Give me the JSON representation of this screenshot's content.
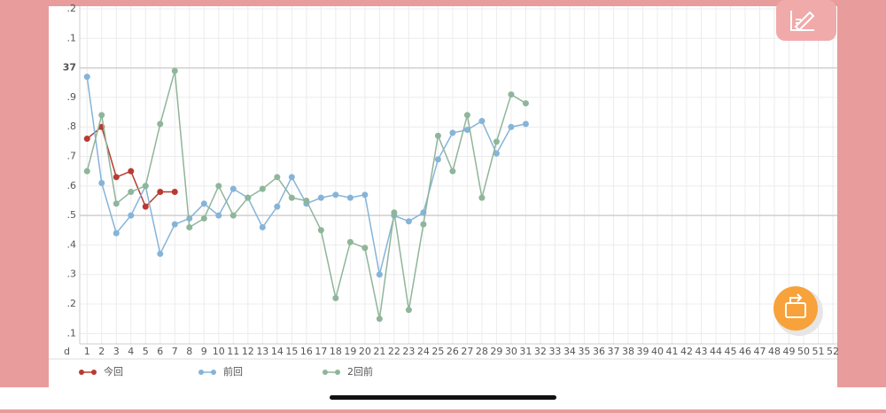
{
  "chart_data": {
    "type": "line",
    "x_label": "d",
    "x": [
      1,
      2,
      3,
      4,
      5,
      6,
      7,
      8,
      9,
      10,
      11,
      12,
      13,
      14,
      15,
      16,
      17,
      18,
      19,
      20,
      21,
      22,
      23,
      24,
      25,
      26,
      27,
      28,
      29,
      30,
      31
    ],
    "series": [
      {
        "name": "今回",
        "color": "#b83a32",
        "values": [
          36.76,
          36.8,
          36.63,
          36.65,
          36.53,
          36.58,
          36.58,
          null,
          null,
          null,
          null,
          null,
          null,
          null,
          null,
          null,
          null,
          null,
          null,
          null,
          null,
          null,
          null,
          null,
          null,
          null,
          null,
          null,
          null,
          null,
          null
        ]
      },
      {
        "name": "前回",
        "color": "#86b4d8",
        "values": [
          36.97,
          36.61,
          36.44,
          36.5,
          36.6,
          36.37,
          36.47,
          36.49,
          36.54,
          36.5,
          36.59,
          36.56,
          36.46,
          36.53,
          36.63,
          36.54,
          36.56,
          36.57,
          36.56,
          36.57,
          36.3,
          36.5,
          36.48,
          36.51,
          36.69,
          36.78,
          36.79,
          36.82,
          36.71,
          36.8,
          36.81
        ]
      },
      {
        "name": "2回前",
        "color": "#8fb59a",
        "values": [
          36.65,
          36.84,
          36.54,
          36.58,
          36.6,
          36.81,
          36.99,
          36.46,
          36.49,
          36.6,
          36.5,
          36.56,
          36.59,
          36.63,
          36.56,
          36.55,
          36.45,
          36.22,
          36.41,
          36.39,
          36.15,
          36.51,
          36.18,
          36.47,
          36.77,
          36.65,
          36.84,
          36.56,
          36.75,
          36.91,
          36.88
        ]
      }
    ],
    "xlim": [
      0.5,
      52.3
    ],
    "xticks": [
      1,
      2,
      3,
      4,
      5,
      6,
      7,
      8,
      9,
      10,
      11,
      12,
      13,
      14,
      15,
      16,
      17,
      18,
      19,
      20,
      21,
      22,
      23,
      24,
      25,
      26,
      27,
      28,
      29,
      30,
      31,
      32,
      33,
      34,
      35,
      36,
      37,
      38,
      39,
      40,
      41,
      42,
      43,
      44,
      45,
      46,
      47,
      48,
      49,
      50,
      51,
      52
    ],
    "ylim": [
      36.065,
      37.2
    ],
    "yticks": [
      {
        "value": 37.2,
        "label": ".2"
      },
      {
        "value": 37.1,
        "label": ".1"
      },
      37,
      {
        "value": 36.9,
        "label": ".9"
      },
      {
        "value": 36.8,
        "label": ".8"
      },
      {
        "value": 36.7,
        "label": ".7"
      },
      {
        "value": 36.6,
        "label": ".6"
      },
      {
        "value": 36.5,
        "label": ".5"
      },
      {
        "value": 36.4,
        "label": ".4"
      },
      {
        "value": 36.3,
        "label": ".3"
      },
      {
        "value": 36.2,
        "label": ".2"
      },
      {
        "value": 36.1,
        "label": ".1"
      }
    ],
    "grid": true
  }
}
